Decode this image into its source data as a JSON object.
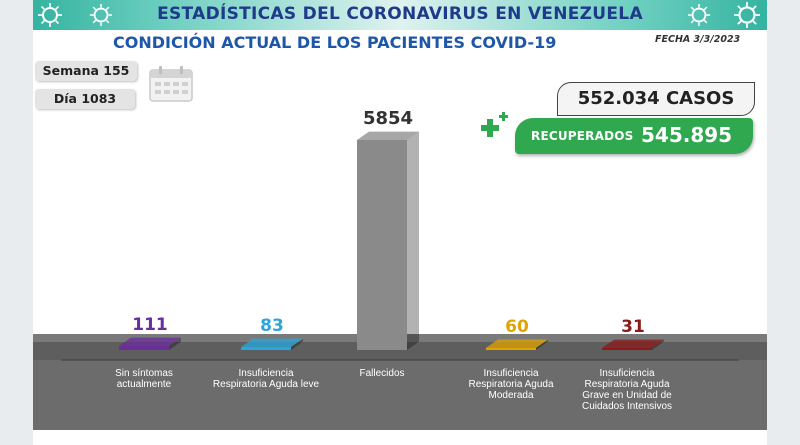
{
  "header": {
    "title": "ESTADÍSTICAS DEL CORONAVIRUS EN VENEZUELA",
    "subtitle": "CONDICIÓN ACTUAL DE LOS PACIENTES COVID-19",
    "date": "FECHA 3/3/2023"
  },
  "counters": {
    "week": "Semana 155",
    "day": "Día 1083"
  },
  "totals": {
    "cases": "552.034 CASOS",
    "recovered_label": "RECUPERADOS",
    "recovered_value": "545.895"
  },
  "icons": [
    "virus-icon",
    "calendar-icon",
    "plus-icon"
  ],
  "colors": {
    "banner": "#35b3a0",
    "title": "#1f3a8a",
    "subtitle": "#1f57a8",
    "recovered": "#2fa84f",
    "floor": "#6c6c6c"
  },
  "chart_data": {
    "type": "bar",
    "categories": [
      "Sin síntomas actualmente",
      "Insuficiencia Respiratoria Aguda leve",
      "Fallecidos",
      "Insuficiencia Respiratoria Aguda Moderada",
      "Insuficiencia Respiratoria Aguda Grave en Unidad de Cuidados Intensivos"
    ],
    "values": [
      111,
      83,
      5854,
      60,
      31
    ],
    "value_labels": [
      "111",
      "83",
      "5854",
      "60",
      "31"
    ],
    "colors": [
      "#6a2d9a",
      "#2aa6dc",
      "#8a8a8a",
      "#e0a400",
      "#8b1a1a"
    ],
    "label_colors": [
      "#6a2d9a",
      "#2aa6dc",
      "#333333",
      "#e0a400",
      "#8b1a1a"
    ],
    "ylim": [
      0,
      5854
    ],
    "grid": false
  }
}
